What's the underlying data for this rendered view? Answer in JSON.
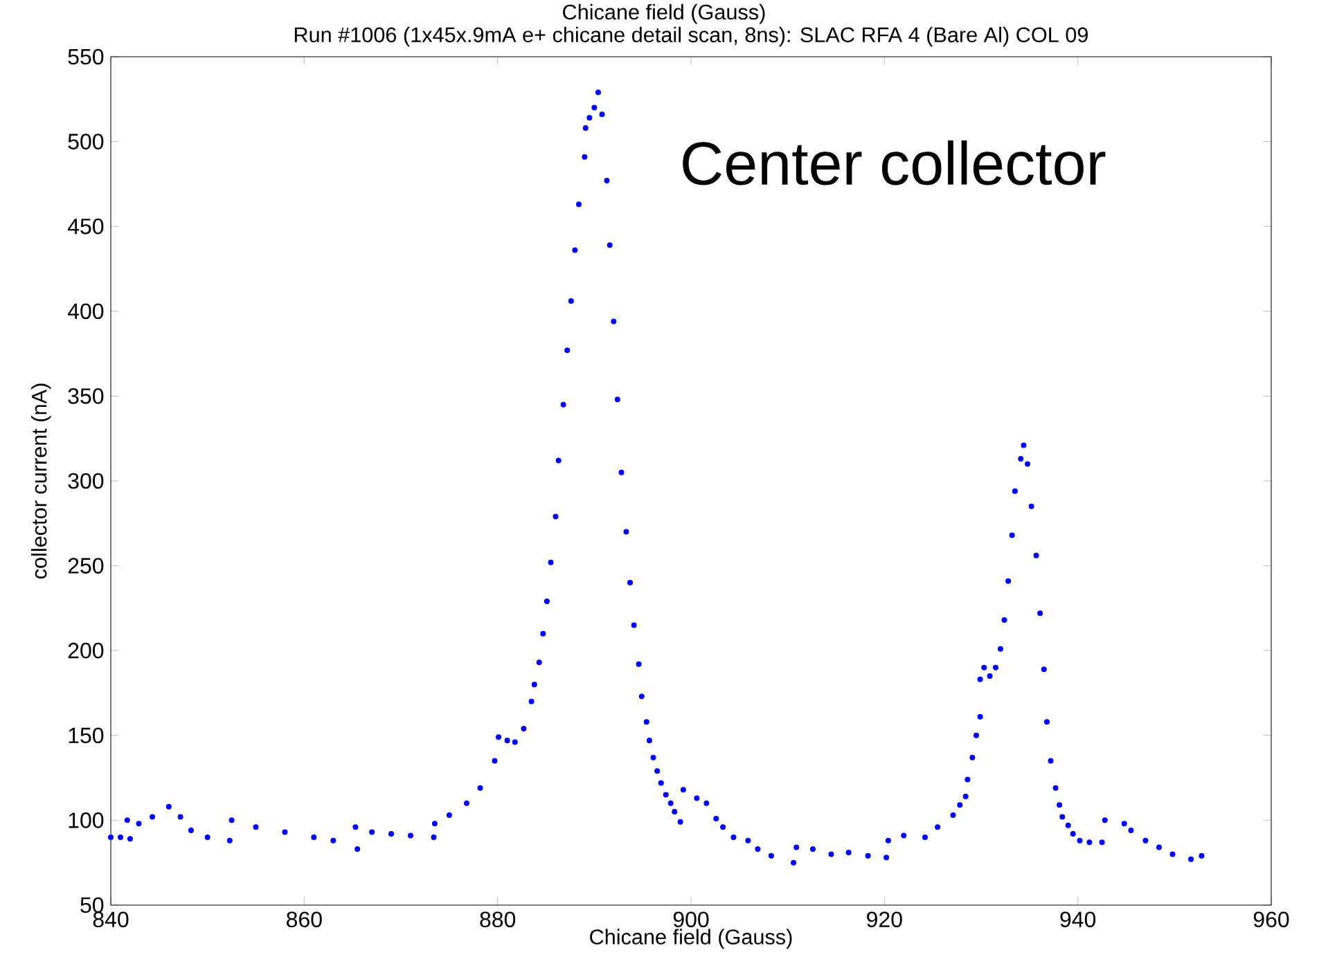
{
  "chart_data": {
    "type": "scatter",
    "title": "Run #1006 (1x45x.9mA e+ chicane detail scan, 8ns):    SLAC RFA 4 (Bare Al)  COL 09",
    "xlabel": "Chicane field (Gauss)",
    "ylabel": "collector current (nA)",
    "annotations": [
      "Chicane field (Gauss)",
      "Center collector"
    ],
    "series": [
      {
        "color": "#0000ff",
        "x": [
          840,
          841,
          842,
          841.7,
          842.9,
          844.3,
          846,
          847.2,
          848.3,
          850,
          852.3,
          852.5,
          855,
          858,
          861,
          863,
          865.5,
          865.3,
          867,
          869,
          871,
          873.4,
          873.5,
          875,
          876.8,
          878.2,
          879.7,
          880.1,
          881,
          881.8,
          882.7,
          883.5,
          883.8,
          884.3,
          884.7,
          885.1,
          885.5,
          886,
          886.3,
          886.8,
          887.2,
          887.6,
          888,
          888.4,
          889,
          889.1,
          889.5,
          890,
          890.4,
          890.8,
          891.3,
          891.6,
          892,
          892.4,
          892.8,
          893.3,
          893.7,
          894.1,
          894.6,
          894.9,
          895.4,
          895.7,
          896.1,
          896.5,
          896.9,
          897.4,
          897.9,
          898.3,
          898.9,
          899.2,
          900.6,
          901.6,
          902.6,
          903.3,
          904.4,
          905.9,
          906.9,
          908.3,
          910.6,
          910.9,
          912.6,
          914.5,
          916.3,
          918.3,
          920.2,
          920.4,
          922,
          924.2,
          925.5,
          927.1,
          927.8,
          928.4,
          928.6,
          929.1,
          929.5,
          929.9,
          929.9,
          930.3,
          930.9,
          931.5,
          932,
          932.4,
          932.8,
          933.2,
          933.5,
          934.1,
          934.4,
          934.8,
          935.2,
          935.7,
          936.1,
          936.5,
          936.8,
          937.2,
          937.7,
          938.1,
          938.4,
          939,
          939.5,
          940.2,
          941.2,
          942.5,
          942.8,
          944.8,
          945.5,
          947,
          948.4,
          949.8,
          951.7,
          952.8
        ],
        "values": [
          90,
          90,
          89,
          100,
          98,
          102,
          108,
          102,
          94,
          90,
          88,
          100,
          96,
          93,
          90,
          88,
          83,
          96,
          93,
          92,
          91,
          90,
          98,
          103,
          110,
          119,
          135,
          149,
          147,
          146,
          154,
          170,
          180,
          193,
          210,
          229,
          252,
          279,
          312,
          345,
          377,
          406,
          436,
          463,
          491,
          508,
          514,
          520,
          529,
          516,
          477,
          439,
          394,
          348,
          305,
          270,
          240,
          215,
          192,
          173,
          158,
          147,
          137,
          129,
          122,
          115,
          110,
          105,
          99,
          118,
          113,
          110,
          101,
          96,
          90,
          88,
          83,
          79,
          75,
          84,
          83,
          80,
          81,
          79,
          78,
          88,
          91,
          90,
          96,
          103,
          109,
          114,
          124,
          137,
          150,
          161,
          183,
          190,
          185,
          190,
          201,
          218,
          241,
          268,
          294,
          313,
          321,
          310,
          285,
          256,
          222,
          189,
          158,
          135,
          119,
          109,
          102,
          97,
          92,
          88,
          87,
          87,
          100,
          98,
          94,
          88,
          84,
          80,
          77,
          79
        ]
      }
    ],
    "marker": "circle",
    "xlim": [
      840,
      960
    ],
    "ylim": [
      50,
      550
    ],
    "xticks": [
      840,
      860,
      880,
      900,
      920,
      940,
      960
    ],
    "yticks": [
      50,
      100,
      150,
      200,
      250,
      300,
      350,
      400,
      450,
      500,
      550
    ],
    "grid": false
  }
}
